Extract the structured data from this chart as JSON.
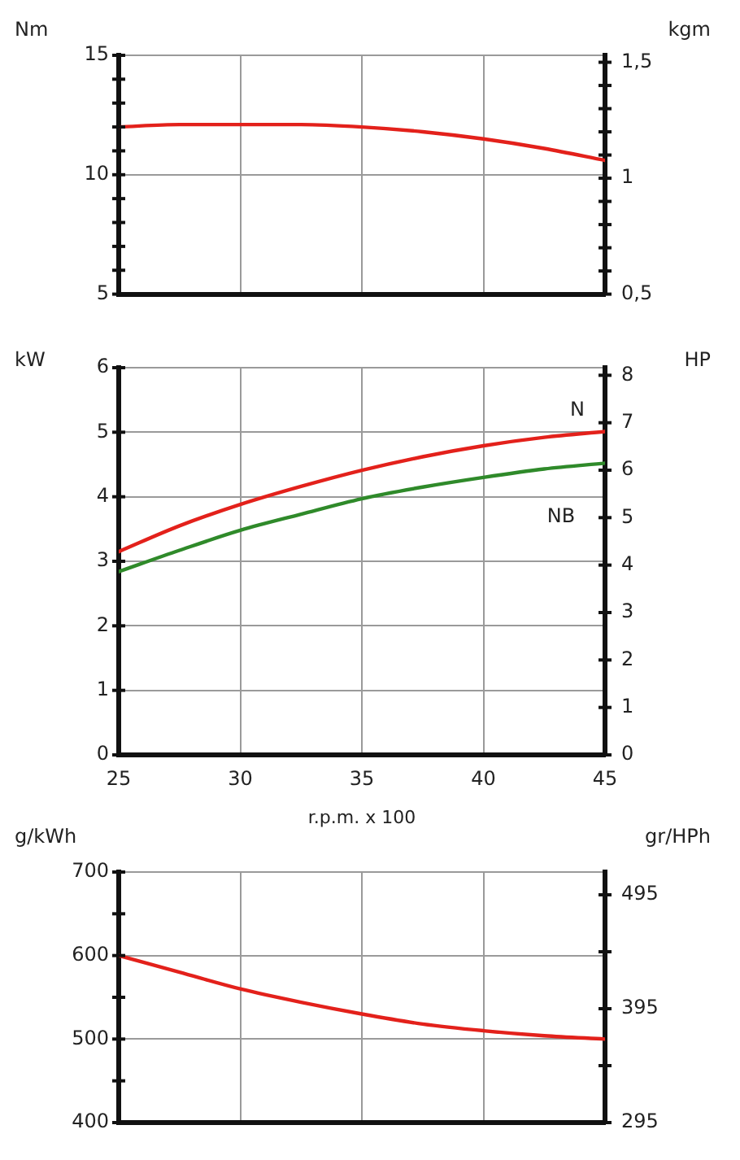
{
  "chart_data": [
    {
      "type": "line",
      "ylabel": "Nm",
      "y2label": "kgm",
      "x": [
        25,
        27.5,
        30,
        32.5,
        35,
        37.5,
        40,
        42.5,
        45
      ],
      "series": [
        {
          "color": "#e3211b",
          "values": [
            12.0,
            12.1,
            12.1,
            12.1,
            12.0,
            11.8,
            11.5,
            11.1,
            10.6
          ]
        }
      ],
      "xlim": [
        25,
        45
      ],
      "xticks": [
        25,
        30,
        35,
        40,
        45
      ],
      "ylim": [
        5,
        15
      ],
      "yticks": [
        5,
        {
          "value": 6,
          "label": null
        },
        {
          "value": 7,
          "label": null
        },
        {
          "value": 8,
          "label": null
        },
        {
          "value": 9,
          "label": null
        },
        10,
        {
          "value": 11,
          "label": null
        },
        {
          "value": 12,
          "label": null
        },
        {
          "value": 13,
          "label": null
        },
        {
          "value": 14,
          "label": null
        },
        15
      ],
      "y2lim": [
        0.5,
        1.53
      ],
      "y2ticks": [
        {
          "value": 0.5,
          "label": "0,5"
        },
        {
          "value": 0.6,
          "label": null
        },
        {
          "value": 0.7,
          "label": null
        },
        {
          "value": 0.8,
          "label": null
        },
        {
          "value": 0.9,
          "label": null
        },
        1,
        {
          "value": 1.1,
          "label": null
        },
        {
          "value": 1.2,
          "label": null
        },
        {
          "value": 1.3,
          "label": null
        },
        {
          "value": 1.4,
          "label": null
        },
        {
          "value": 1.5,
          "label": "1,5"
        }
      ],
      "grid": true,
      "tick_labels": "y"
    },
    {
      "type": "line",
      "xlabel": "r.p.m. x 100",
      "ylabel": "kW",
      "y2label": "HP",
      "x": [
        25,
        27.5,
        30,
        32.5,
        35,
        37.5,
        40,
        42.5,
        45
      ],
      "series": [
        {
          "name": "N",
          "color": "#e3211b",
          "values": [
            3.15,
            3.55,
            3.88,
            4.16,
            4.41,
            4.62,
            4.79,
            4.92,
            5.01
          ]
        },
        {
          "name": "NB",
          "color": "#2f8a2a",
          "values": [
            2.84,
            3.17,
            3.48,
            3.73,
            3.97,
            4.15,
            4.3,
            4.43,
            4.52
          ]
        }
      ],
      "xlim": [
        25,
        45
      ],
      "xticks": [
        25,
        30,
        35,
        40,
        45
      ],
      "ylim": [
        0,
        6
      ],
      "yticks": [
        0,
        1,
        2,
        3,
        4,
        5,
        6
      ],
      "y2lim": [
        0,
        8.16
      ],
      "y2ticks": [
        0,
        1,
        2,
        3,
        4,
        5,
        6,
        7,
        8
      ],
      "grid": true
    },
    {
      "type": "line",
      "ylabel": "g/kWh",
      "y2label": "gr/HPh",
      "x": [
        25,
        27.5,
        30,
        32.5,
        35,
        37.5,
        40,
        42.5,
        45
      ],
      "series": [
        {
          "color": "#e3211b",
          "values": [
            600,
            580,
            560,
            544,
            530,
            518,
            510,
            504,
            500
          ]
        }
      ],
      "xlim": [
        25,
        45
      ],
      "xticks": [
        25,
        30,
        35,
        40,
        45
      ],
      "ylim": [
        400,
        700
      ],
      "yticks": [
        400,
        {
          "value": 450,
          "label": null
        },
        500,
        {
          "value": 550,
          "label": null
        },
        600,
        {
          "value": 650,
          "label": null
        },
        700
      ],
      "y2lim": [
        295,
        515
      ],
      "y2ticks": [
        295,
        {
          "value": 345,
          "label": null
        },
        395,
        {
          "value": 445,
          "label": null
        },
        495
      ],
      "grid": true,
      "tick_labels": "y"
    }
  ]
}
